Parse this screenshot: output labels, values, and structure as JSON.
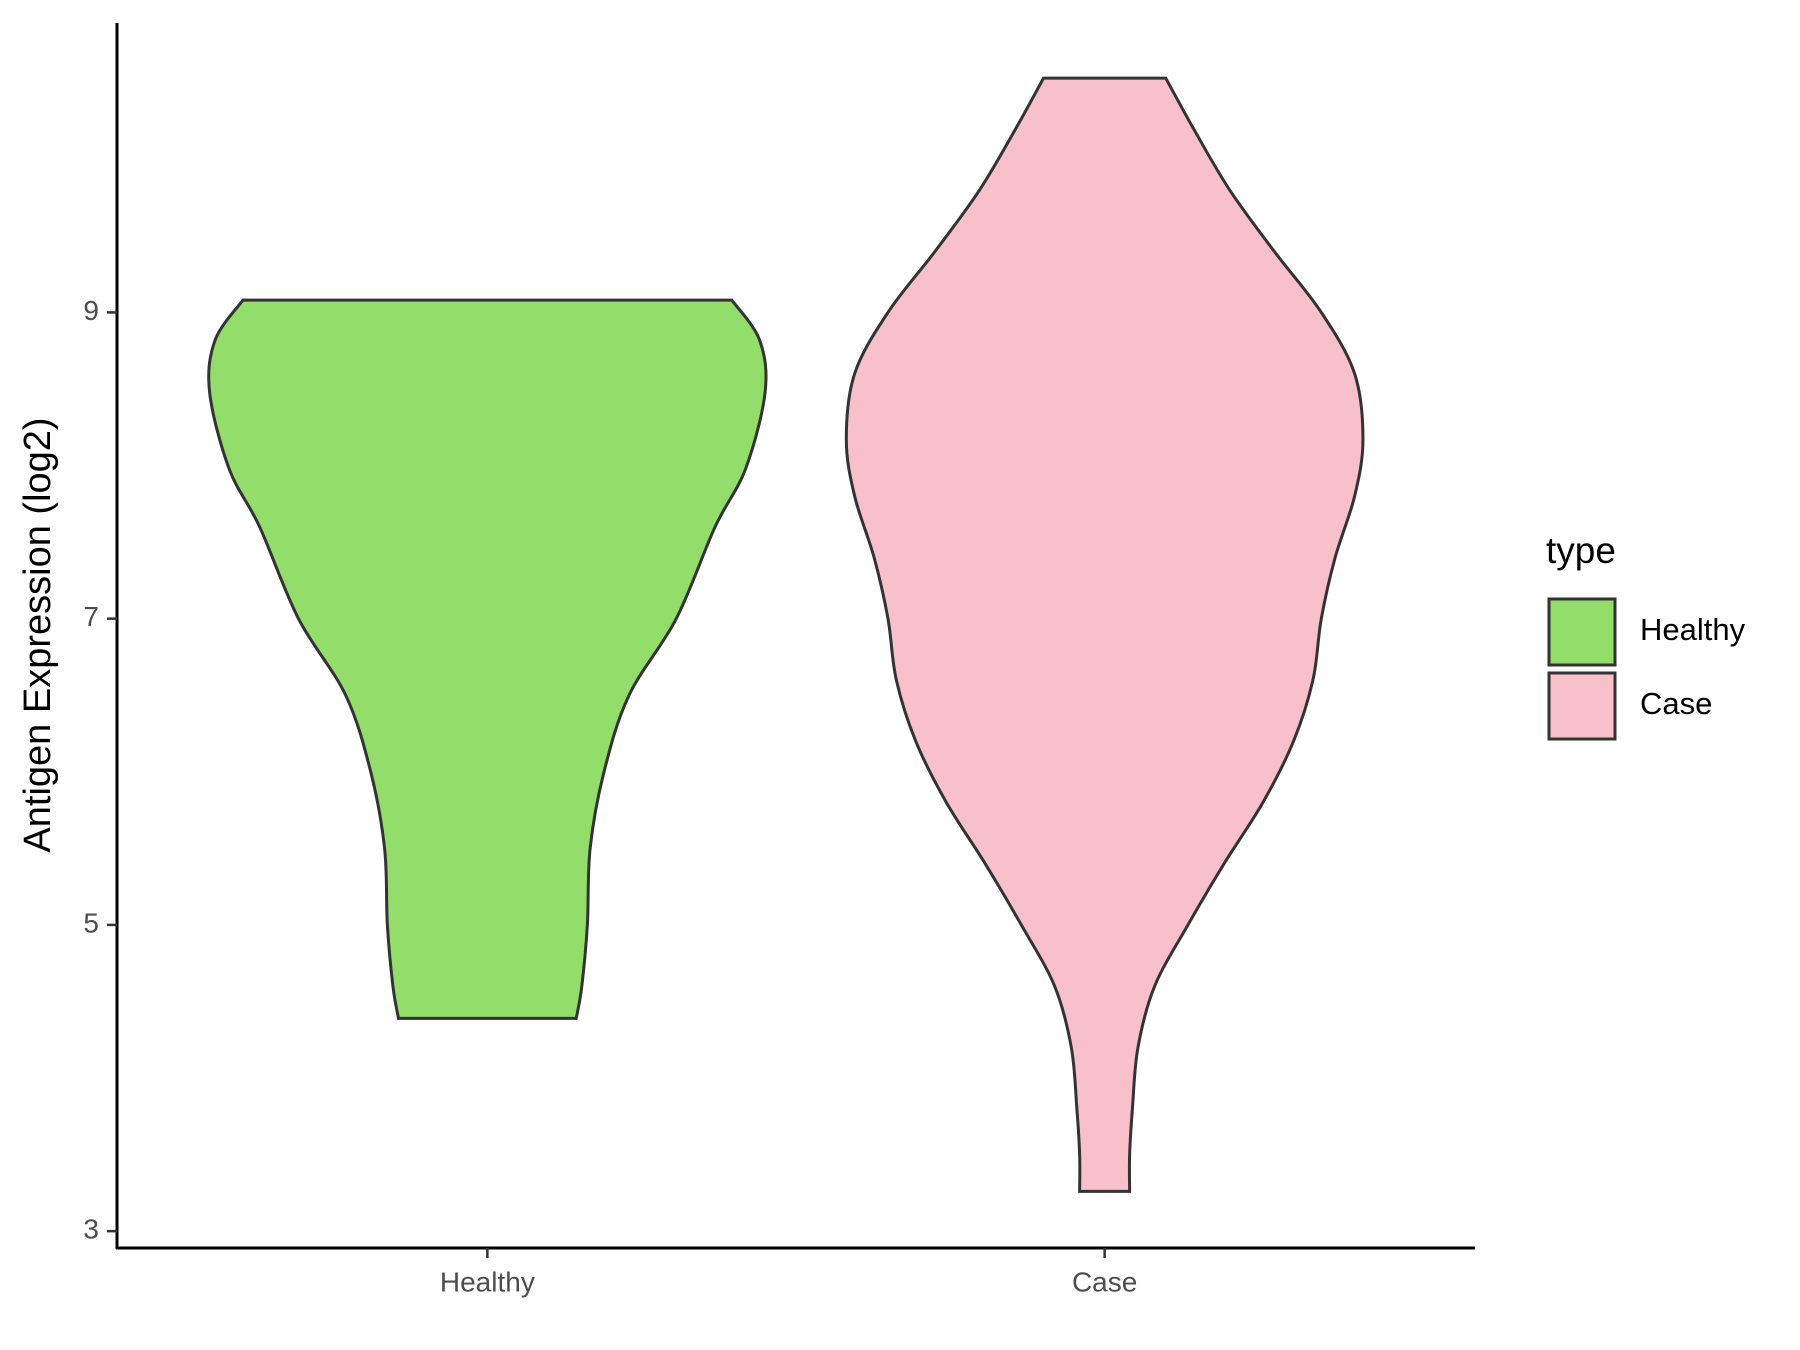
{
  "chart_data": {
    "type": "violin",
    "y_label": "Antigen Expression (log2)",
    "categories": [
      "Healthy",
      "Case"
    ],
    "legend_title": "type",
    "ylim": [
      2.89,
      10.89
    ],
    "yticks": [
      3,
      5,
      7,
      9
    ],
    "series": [
      {
        "name": "Healthy",
        "color": "#93dd6b",
        "y": [
          9.08,
          8.82,
          8.48,
          7.98,
          7.6,
          7.0,
          6.5,
          6.0,
          5.5,
          5.0,
          4.6,
          4.39
        ],
        "density": [
          0.88,
          0.98,
          1.0,
          0.93,
          0.82,
          0.68,
          0.51,
          0.42,
          0.37,
          0.36,
          0.34,
          0.32
        ]
      },
      {
        "name": "Case",
        "color": "#f7c0cb",
        "y": [
          10.53,
          10.2,
          9.8,
          9.4,
          9.0,
          8.6,
          8.17,
          7.8,
          7.4,
          7.0,
          6.6,
          6.2,
          5.8,
          5.4,
          5.0,
          4.6,
          4.2,
          3.8,
          3.5,
          3.26
        ],
        "density": [
          0.22,
          0.32,
          0.45,
          0.61,
          0.78,
          0.9,
          0.93,
          0.9,
          0.83,
          0.78,
          0.75,
          0.68,
          0.57,
          0.43,
          0.3,
          0.18,
          0.12,
          0.1,
          0.09,
          0.09
        ]
      }
    ]
  }
}
